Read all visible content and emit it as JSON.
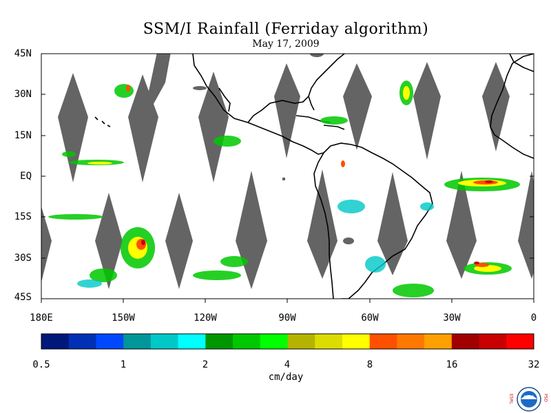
{
  "title": "SSM/I Rainfall (Ferriday algorithm)",
  "subtitle": "May 17, 2009",
  "lat_labels": [
    "45N",
    "30N",
    "15N",
    "EQ",
    "15S",
    "30S",
    "45S"
  ],
  "lon_labels": [
    "180E",
    "150W",
    "120W",
    "90W",
    "60W",
    "30W",
    "0"
  ],
  "colorbar": {
    "colors": [
      "#00187a",
      "#0030b4",
      "#0048ff",
      "#00969a",
      "#00c8c8",
      "#00ffff",
      "#009600",
      "#00c800",
      "#00ff00",
      "#b4b400",
      "#dcdc00",
      "#ffff00",
      "#ff5000",
      "#ff7800",
      "#ffa000",
      "#a00000",
      "#c80000",
      "#ff0000"
    ],
    "tick_labels": [
      "0.5",
      "1",
      "2",
      "4",
      "8",
      "16",
      "32"
    ],
    "units": "cm/day"
  },
  "colors": {
    "land_outline": "#000000",
    "missing_swath": "#646464"
  },
  "logo": {
    "letters_left": "ESRL",
    "letters_right": "PSD",
    "center": "NOAA"
  }
}
